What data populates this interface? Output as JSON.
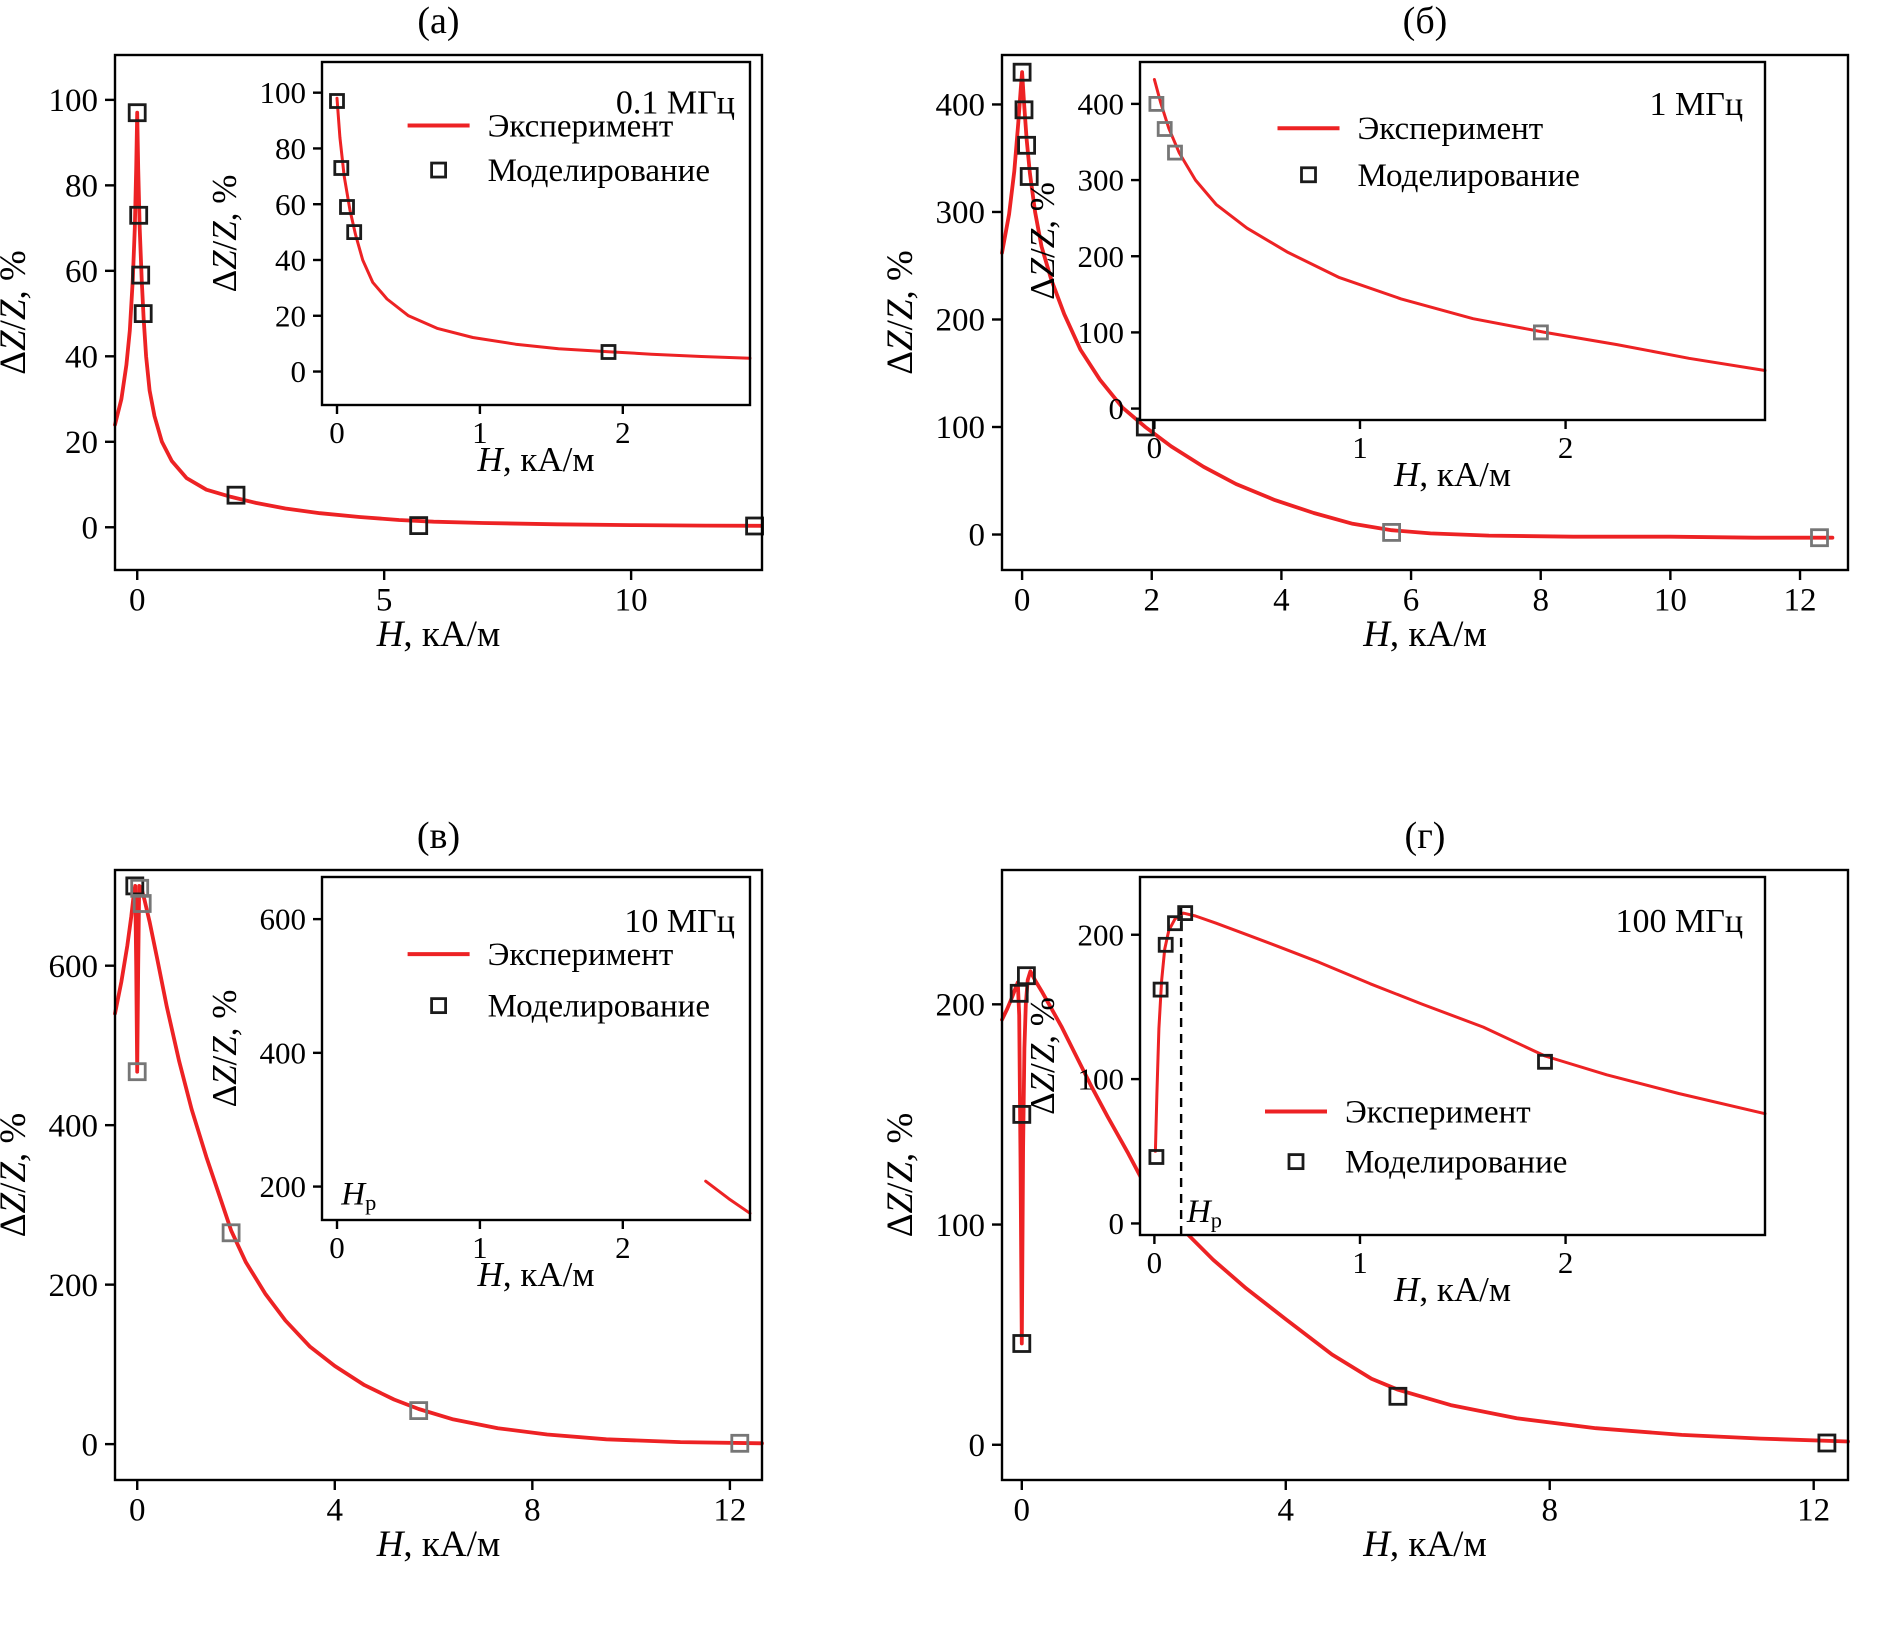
{
  "style": {
    "curve_color": "#ed2224",
    "marker_color": "#1b1b1b",
    "marker_gray": "#767676",
    "axis_color": "#000000",
    "background": "#ffffff"
  },
  "labels": {
    "legend_line": "Эксперимент",
    "legend_marker": "Моделирование",
    "ylabel_parts": [
      {
        "t": "Δ",
        "i": 0
      },
      {
        "t": "Z",
        "i": 1
      },
      {
        "t": "/",
        "i": 0
      },
      {
        "t": "Z",
        "i": 1
      },
      {
        "t": ", %",
        "i": 0
      }
    ],
    "xlabel_parts": [
      {
        "t": "H",
        "i": 1
      },
      {
        "t": ", кА/м",
        "i": 0
      }
    ],
    "hp_parts": [
      {
        "t": "H",
        "i": 1
      },
      {
        "t": "p",
        "i": 0,
        "sub": true
      }
    ]
  },
  "chart_data": [
    {
      "panel": "(а)",
      "type": "line",
      "frequency": "0.1 МГц",
      "xlabel": "H, кА/м",
      "ylabel": "ΔZ/Z, %",
      "main": {
        "xlim": [
          -0.45,
          12.65
        ],
        "ylim": [
          -10,
          110.5
        ],
        "xticks": [
          0,
          5,
          10
        ],
        "yticks": [
          0,
          20,
          40,
          60,
          80,
          100
        ],
        "experiment_curve": [
          [
            -0.45,
            24
          ],
          [
            -0.32,
            30
          ],
          [
            -0.22,
            38
          ],
          [
            -0.15,
            46
          ],
          [
            -0.09,
            58
          ],
          [
            -0.05,
            70
          ],
          [
            -0.02,
            84
          ],
          [
            0,
            97
          ],
          [
            0.02,
            84
          ],
          [
            0.05,
            70
          ],
          [
            0.09,
            58
          ],
          [
            0.13,
            49
          ],
          [
            0.18,
            40
          ],
          [
            0.25,
            32
          ],
          [
            0.35,
            26
          ],
          [
            0.5,
            20
          ],
          [
            0.7,
            15.5
          ],
          [
            1,
            11.5
          ],
          [
            1.4,
            8.8
          ],
          [
            1.9,
            7.1
          ],
          [
            2.4,
            5.7
          ],
          [
            3,
            4.4
          ],
          [
            3.7,
            3.3
          ],
          [
            4.5,
            2.4
          ],
          [
            5.3,
            1.7
          ],
          [
            6,
            1.3
          ],
          [
            7,
            1
          ],
          [
            8.5,
            0.7
          ],
          [
            10,
            0.5
          ],
          [
            11.5,
            0.4
          ],
          [
            12.65,
            0.35
          ]
        ],
        "model_points": [
          [
            0,
            97
          ],
          [
            0.03,
            73
          ],
          [
            0.07,
            59
          ],
          [
            0.12,
            50
          ],
          [
            2,
            7.5
          ],
          [
            5.7,
            0.4
          ],
          [
            12.5,
            0.3
          ]
        ]
      },
      "inset": {
        "xlim": [
          -0.105,
          2.89
        ],
        "ylim": [
          -12,
          111
        ],
        "xticks": [
          0,
          1,
          2
        ],
        "yticks": [
          0,
          20,
          40,
          60,
          80,
          100
        ],
        "experiment_curve": [
          [
            0,
            98
          ],
          [
            0.02,
            84
          ],
          [
            0.05,
            70
          ],
          [
            0.09,
            58
          ],
          [
            0.13,
            49
          ],
          [
            0.18,
            40
          ],
          [
            0.25,
            32
          ],
          [
            0.35,
            26
          ],
          [
            0.5,
            20
          ],
          [
            0.7,
            15.5
          ],
          [
            0.95,
            12.2
          ],
          [
            1.25,
            9.8
          ],
          [
            1.55,
            8.2
          ],
          [
            1.9,
            7.1
          ],
          [
            2.2,
            6.2
          ],
          [
            2.55,
            5.4
          ],
          [
            2.89,
            4.8
          ]
        ],
        "model_points": [
          [
            0,
            97
          ],
          [
            0.03,
            73
          ],
          [
            0.07,
            59
          ],
          [
            0.12,
            50
          ],
          [
            1.9,
            7
          ]
        ],
        "legend": true,
        "hp_label": false,
        "dash_x": null,
        "dash_top": null
      }
    },
    {
      "panel": "(б)",
      "type": "line",
      "frequency": "1 МГц",
      "xlabel": "H, кА/м",
      "ylabel": "ΔZ/Z, %",
      "main": {
        "xlim": [
          -0.31,
          12.74
        ],
        "ylim": [
          -33,
          446
        ],
        "xticks": [
          0,
          2,
          4,
          6,
          8,
          10,
          12
        ],
        "yticks": [
          0,
          100,
          200,
          300,
          400
        ],
        "experiment_curve": [
          [
            -0.31,
            262
          ],
          [
            -0.2,
            298
          ],
          [
            -0.12,
            338
          ],
          [
            -0.06,
            382
          ],
          [
            -0.02,
            415
          ],
          [
            0,
            430
          ],
          [
            0.03,
            402
          ],
          [
            0.07,
            368
          ],
          [
            0.12,
            336
          ],
          [
            0.2,
            300
          ],
          [
            0.3,
            268
          ],
          [
            0.45,
            237
          ],
          [
            0.65,
            205
          ],
          [
            0.9,
            172
          ],
          [
            1.2,
            144
          ],
          [
            1.55,
            118
          ],
          [
            1.9,
            100
          ],
          [
            2.3,
            82
          ],
          [
            2.8,
            63
          ],
          [
            3.3,
            47
          ],
          [
            3.9,
            32
          ],
          [
            4.5,
            20
          ],
          [
            5.1,
            10
          ],
          [
            5.7,
            4
          ],
          [
            6.3,
            1
          ],
          [
            7.2,
            -1
          ],
          [
            8.5,
            -2
          ],
          [
            10,
            -2
          ],
          [
            11.3,
            -3
          ],
          [
            12.5,
            -3
          ]
        ],
        "model_points": [
          [
            0,
            430
          ],
          [
            0.03,
            395
          ],
          [
            0.07,
            362
          ],
          [
            0.11,
            333
          ],
          [
            1.9,
            100
          ],
          [
            5.7,
            2,
            1
          ],
          [
            12.3,
            -3,
            1
          ]
        ]
      },
      "inset": {
        "xlim": [
          -0.07,
          2.97
        ],
        "ylim": [
          -15,
          455
        ],
        "xticks": [
          0,
          1,
          2
        ],
        "yticks": [
          0,
          100,
          200,
          300,
          400
        ],
        "experiment_curve": [
          [
            0,
            432
          ],
          [
            0.03,
            402
          ],
          [
            0.07,
            368
          ],
          [
            0.12,
            336
          ],
          [
            0.2,
            300
          ],
          [
            0.3,
            268
          ],
          [
            0.45,
            237
          ],
          [
            0.65,
            205
          ],
          [
            0.9,
            172
          ],
          [
            1.2,
            144
          ],
          [
            1.55,
            118
          ],
          [
            1.9,
            100
          ],
          [
            2.25,
            84
          ],
          [
            2.6,
            66
          ],
          [
            2.97,
            50
          ]
        ],
        "model_points": [
          [
            0.01,
            400,
            1
          ],
          [
            0.05,
            367,
            1
          ],
          [
            0.1,
            336,
            1
          ],
          [
            1.88,
            100,
            1
          ]
        ],
        "legend": true,
        "hp_label": false,
        "dash_x": null,
        "dash_top": null
      }
    },
    {
      "panel": "(в)",
      "type": "line",
      "frequency": "10 МГц",
      "xlabel": "H, кА/м",
      "ylabel": "ΔZ/Z, %",
      "main": {
        "xlim": [
          -0.45,
          12.65
        ],
        "ylim": [
          -45,
          720
        ],
        "xticks": [
          0,
          4,
          8,
          12
        ],
        "yticks": [
          0,
          200,
          400,
          600
        ],
        "experiment_curve": [
          [
            -0.45,
            540
          ],
          [
            -0.32,
            580
          ],
          [
            -0.2,
            625
          ],
          [
            -0.12,
            662
          ],
          [
            -0.07,
            690
          ],
          [
            -0.04,
            700
          ],
          [
            -0.02,
            600
          ],
          [
            0,
            467
          ],
          [
            0.02,
            600
          ],
          [
            0.04,
            700
          ],
          [
            0.08,
            698
          ],
          [
            0.15,
            682
          ],
          [
            0.25,
            655
          ],
          [
            0.4,
            610
          ],
          [
            0.6,
            548
          ],
          [
            0.85,
            480
          ],
          [
            1.1,
            420
          ],
          [
            1.4,
            360
          ],
          [
            1.7,
            305
          ],
          [
            1.9,
            268
          ],
          [
            2.2,
            228
          ],
          [
            2.6,
            188
          ],
          [
            3,
            155
          ],
          [
            3.5,
            122
          ],
          [
            4,
            98
          ],
          [
            4.6,
            74
          ],
          [
            5.2,
            56
          ],
          [
            5.7,
            44
          ],
          [
            6.4,
            31
          ],
          [
            7.3,
            20
          ],
          [
            8.3,
            12
          ],
          [
            9.5,
            6
          ],
          [
            11,
            2.5
          ],
          [
            12.65,
            1
          ]
        ],
        "model_points": [
          [
            -0.05,
            700
          ],
          [
            0.05,
            697,
            1
          ],
          [
            0.1,
            678,
            1
          ],
          [
            0,
            467,
            1
          ],
          [
            1.9,
            265,
            1
          ],
          [
            5.7,
            42,
            1
          ],
          [
            12.2,
            1,
            1
          ]
        ]
      },
      "inset": {
        "xlim": [
          -0.105,
          2.89
        ],
        "ylim": [
          150,
          663
        ],
        "xticks": [
          0,
          1,
          2
        ],
        "yticks": [
          200,
          400,
          600
        ],
        "experiment_curve": [
          [
            2.58,
            208
          ],
          [
            2.74,
            182
          ],
          [
            2.89,
            160
          ]
        ],
        "model_points": [],
        "legend": true,
        "hp_label": true,
        "dash_x": null,
        "dash_top": null
      }
    },
    {
      "panel": "(г)",
      "type": "line",
      "frequency": "100 МГц",
      "xlabel": "H, кА/м",
      "ylabel": "ΔZ/Z, %",
      "main": {
        "xlim": [
          -0.3,
          12.52
        ],
        "ylim": [
          -16,
          261
        ],
        "xticks": [
          0,
          4,
          8,
          12
        ],
        "yticks": [
          0,
          100,
          200
        ],
        "experiment_curve": [
          [
            -0.3,
            193
          ],
          [
            -0.22,
            198
          ],
          [
            -0.15,
            203
          ],
          [
            -0.1,
            207
          ],
          [
            -0.06,
            210
          ],
          [
            -0.04,
            195
          ],
          [
            -0.02,
            130
          ],
          [
            0,
            46
          ],
          [
            0.02,
            135
          ],
          [
            0.04,
            180
          ],
          [
            0.06,
            200
          ],
          [
            0.09,
            211
          ],
          [
            0.13,
            215
          ],
          [
            0.2,
            211
          ],
          [
            0.3,
            206
          ],
          [
            0.45,
            198
          ],
          [
            0.6,
            190
          ],
          [
            0.8,
            178
          ],
          [
            1.05,
            163
          ],
          [
            1.3,
            149
          ],
          [
            1.6,
            133
          ],
          [
            1.9,
            116
          ],
          [
            2.05,
            110
          ],
          [
            2.4,
            99
          ],
          [
            2.9,
            84
          ],
          [
            3.4,
            71
          ],
          [
            4,
            57
          ],
          [
            4.7,
            41
          ],
          [
            5.3,
            30
          ],
          [
            5.7,
            25
          ],
          [
            6.5,
            18
          ],
          [
            7.5,
            12
          ],
          [
            8.7,
            7.5
          ],
          [
            10,
            4.5
          ],
          [
            11.2,
            2.8
          ],
          [
            12.52,
            1.5
          ]
        ],
        "model_points": [
          [
            -0.04,
            205
          ],
          [
            0.07,
            213
          ],
          [
            0,
            150
          ],
          [
            0,
            46
          ],
          [
            2,
            112
          ],
          [
            5.7,
            22
          ],
          [
            12.2,
            0.8
          ]
        ]
      },
      "inset": {
        "xlim": [
          -0.07,
          2.97
        ],
        "ylim": [
          -8,
          240
        ],
        "xticks": [
          0,
          1,
          2
        ],
        "yticks": [
          0,
          100,
          200
        ],
        "experiment_curve": [
          [
            0.005,
            50
          ],
          [
            0.012,
            90
          ],
          [
            0.022,
            135
          ],
          [
            0.035,
            168
          ],
          [
            0.05,
            190
          ],
          [
            0.07,
            203
          ],
          [
            0.1,
            211
          ],
          [
            0.14,
            215
          ],
          [
            0.2,
            213
          ],
          [
            0.3,
            208
          ],
          [
            0.45,
            200
          ],
          [
            0.6,
            192
          ],
          [
            0.8,
            181
          ],
          [
            1.05,
            166
          ],
          [
            1.3,
            152
          ],
          [
            1.6,
            136
          ],
          [
            1.9,
            116
          ],
          [
            2.2,
            103
          ],
          [
            2.55,
            90
          ],
          [
            2.97,
            76
          ]
        ],
        "model_points": [
          [
            0.01,
            46
          ],
          [
            0.03,
            162
          ],
          [
            0.055,
            193
          ],
          [
            0.1,
            208
          ],
          [
            0.15,
            215
          ],
          [
            1.9,
            112
          ]
        ],
        "legend": true,
        "hp_label": true,
        "dash_x": 0.13,
        "dash_top": 222
      }
    }
  ]
}
